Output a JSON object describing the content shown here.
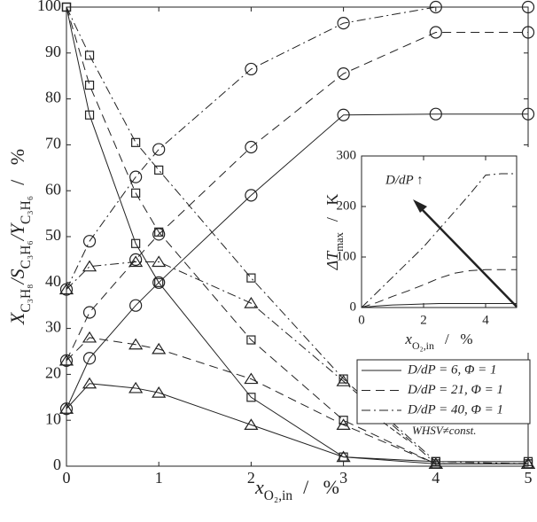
{
  "chart_data": {
    "type": "line",
    "x": [
      0,
      0.25,
      0.75,
      1,
      2,
      3,
      4,
      5
    ],
    "xlim": [
      0,
      5
    ],
    "xticks": [
      0,
      1,
      2,
      3,
      4,
      5
    ],
    "ylim": [
      0,
      100
    ],
    "yticks": [
      0,
      10,
      20,
      30,
      40,
      50,
      60,
      70,
      80,
      90,
      100
    ],
    "x_label": {
      "parts": [
        "x",
        "O₂,in"
      ],
      "unit": "/   %"
    },
    "y_label": {
      "parts": [
        "X",
        "C₃H₈",
        "/S",
        "C₃H₆",
        "/Y",
        "C₃H₆"
      ],
      "unit": "/   %"
    },
    "markers": {
      "X": "circle",
      "S": "square",
      "Y": "triangle"
    },
    "color": "#222222",
    "legend": "lower right",
    "series": [
      {
        "name": "D/dP = 6, Φ = 1",
        "dash": "none",
        "X": [
          12.5,
          23.5,
          35,
          40,
          59,
          76.5,
          76.7,
          76.7
        ],
        "S": [
          100,
          76.5,
          48.5,
          40,
          15,
          2,
          1,
          1
        ],
        "Y": [
          12.5,
          18,
          17,
          16,
          9,
          2,
          0.5,
          0.5
        ]
      },
      {
        "name": "D/dP = 21, Φ = 1",
        "dash": "10,6",
        "X": [
          23,
          33.5,
          45,
          50.5,
          69.5,
          85.5,
          94.5,
          94.5
        ],
        "S": [
          100,
          83,
          59.5,
          51,
          27.5,
          10,
          0.5,
          0.5
        ],
        "Y": [
          23,
          28,
          26.5,
          25.5,
          19,
          9,
          0.5,
          0.5
        ]
      },
      {
        "name": "D/dP = 40, Φ = 1",
        "dash": "10,4,2,4",
        "X": [
          38.5,
          49,
          63,
          69,
          86.5,
          96.5,
          100,
          100
        ],
        "S": [
          100,
          89.5,
          70.5,
          64.5,
          41,
          19,
          1,
          0.5
        ],
        "Y": [
          38.5,
          43.5,
          44.5,
          44.5,
          35.5,
          18.5,
          0.5,
          0.5
        ]
      }
    ],
    "annotation": "WHSV≠const.",
    "inset": {
      "type": "line",
      "x": [
        0,
        0.5,
        1,
        1.5,
        2,
        2.5,
        3,
        3.5,
        4,
        4.5,
        5
      ],
      "xlim": [
        0,
        5
      ],
      "xticks": [
        0,
        2,
        4
      ],
      "ylim": [
        0,
        300
      ],
      "yticks": [
        0,
        100,
        200,
        300
      ],
      "x_label": {
        "parts": [
          "x",
          "O₂,in"
        ],
        "unit": "/   %"
      },
      "y_label": {
        "parts": [
          "ΔT",
          "max"
        ],
        "unit": "/   K"
      },
      "arrow_label": "D/dP ↑",
      "series": [
        {
          "dash": "none",
          "values": [
            0,
            3,
            5,
            6,
            7,
            8,
            8,
            8,
            8,
            8,
            8
          ]
        },
        {
          "dash": "10,6",
          "values": [
            0,
            10,
            22,
            33,
            45,
            58,
            68,
            73,
            75,
            75,
            75
          ]
        },
        {
          "dash": "10,4,2,4",
          "values": [
            0,
            30,
            60,
            90,
            120,
            155,
            190,
            225,
            262,
            265,
            265
          ]
        }
      ]
    }
  }
}
